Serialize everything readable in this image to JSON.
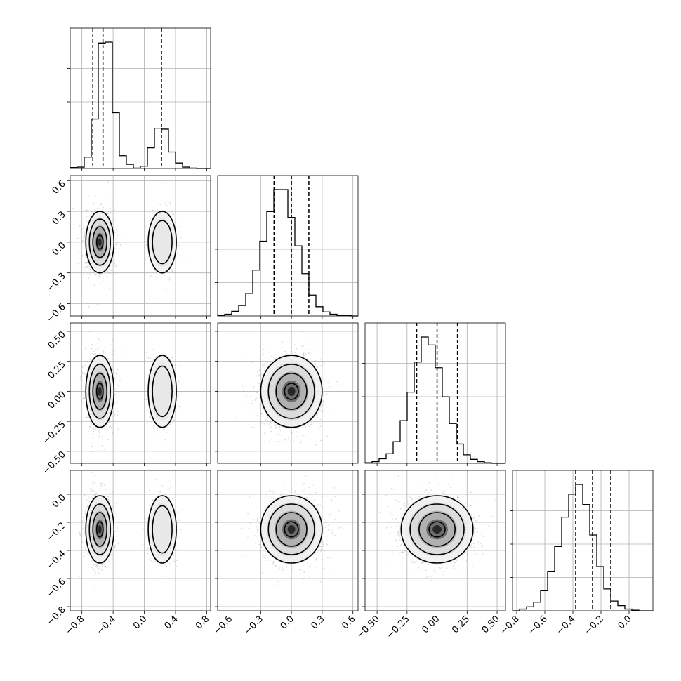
{
  "chart_data": {
    "type": "corner",
    "title": "",
    "parameters": [
      "",
      "",
      "",
      ""
    ],
    "ranges": [
      [
        -0.95,
        0.85
      ],
      [
        -0.72,
        0.65
      ],
      [
        -0.6,
        0.57
      ],
      [
        -0.83,
        0.17
      ]
    ],
    "tick_labels": [
      [
        "−0.8",
        "−0.4",
        "0.0",
        "0.4",
        "0.8"
      ],
      [
        "−0.6",
        "−0.3",
        "0.0",
        "0.3",
        "0.6"
      ],
      [
        "−0.50",
        "−0.25",
        "0.00",
        "0.25",
        "0.50"
      ],
      [
        "−0.8",
        "−0.6",
        "−0.4",
        "−0.2",
        "0.0"
      ]
    ],
    "ticks": [
      [
        -0.8,
        -0.4,
        0.0,
        0.4,
        0.8
      ],
      [
        -0.6,
        -0.3,
        0.0,
        0.3,
        0.6
      ],
      [
        -0.5,
        -0.25,
        0.0,
        0.25,
        0.5
      ],
      [
        -0.8,
        -0.6,
        -0.4,
        -0.2,
        0.0
      ]
    ],
    "grid": true,
    "quantiles": [
      [
        -0.66,
        -0.53,
        0.22
      ],
      [
        -0.17,
        0.0,
        0.17
      ],
      [
        -0.17,
        0.0,
        0.17
      ],
      [
        -0.38,
        -0.26,
        -0.13
      ]
    ],
    "histograms": [
      {
        "bin_start": -0.95,
        "bin_width": 0.09,
        "counts": [
          2,
          3,
          25,
          108,
          274,
          276,
          122,
          28,
          9,
          1,
          5,
          45,
          88,
          86,
          36,
          12,
          3,
          1,
          0,
          0
        ]
      },
      {
        "bin_start": -0.72,
        "bin_width": 0.0685,
        "counts": [
          1,
          3,
          8,
          18,
          39,
          79,
          129,
          180,
          218,
          218,
          170,
          121,
          73,
          36,
          16,
          7,
          3,
          1,
          1,
          0
        ]
      },
      {
        "bin_start": -0.6,
        "bin_width": 0.0585,
        "counts": [
          1,
          3,
          8,
          17,
          38,
          75,
          125,
          178,
          222,
          208,
          168,
          117,
          70,
          34,
          15,
          7,
          3,
          1,
          0,
          0
        ]
      },
      {
        "bin_start": -0.83,
        "bin_width": 0.05,
        "counts": [
          0,
          3,
          7,
          15,
          35,
          68,
          112,
          163,
          203,
          220,
          185,
          132,
          77,
          38,
          17,
          9,
          3,
          1,
          0,
          0
        ]
      }
    ],
    "modes": [
      {
        "center": [
          -0.57,
          0.0
        ],
        "sigma": [
          0.09,
          0.16
        ],
        "weight": 0.7
      },
      {
        "center": [
          0.23,
          0.0
        ],
        "sigma": [
          0.09,
          0.16
        ],
        "weight": 0.3
      }
    ],
    "marginal_sigma": [
      0.15,
      0.15,
      0.15,
      0.12
    ],
    "marginal_mean": [
      -0.33,
      0.0,
      0.0,
      -0.25
    ]
  }
}
